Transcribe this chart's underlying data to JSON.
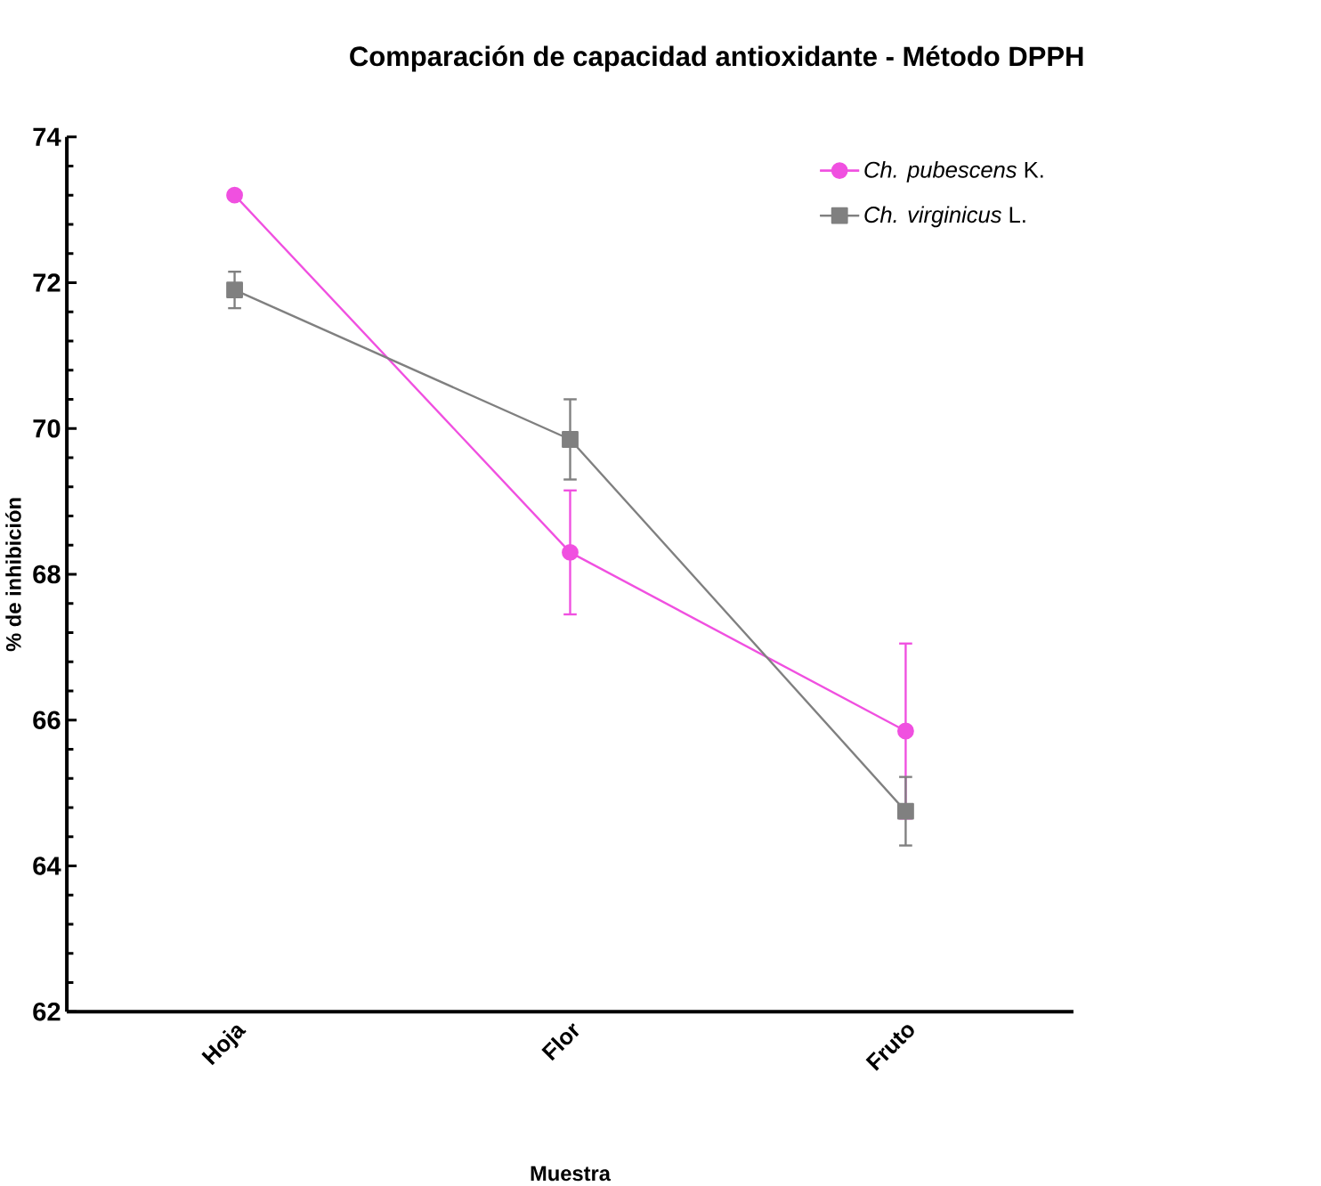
{
  "chart_data": {
    "type": "line",
    "title": "Comparación de capacidad antioxidante - Método DPPH",
    "xlabel": "Muestra",
    "ylabel": "% de inhibición",
    "categories": [
      "Hoja",
      "Flor",
      "Fruto"
    ],
    "series": [
      {
        "name": "*Ch. pubescens* K.",
        "color": "#f050e0",
        "values": [
          73.2,
          68.3,
          65.85
        ],
        "errors": [
          null,
          0.85,
          1.2
        ],
        "marker": "circle"
      },
      {
        "name": "*Ch. virginicus* L.",
        "color": "#808080",
        "values": [
          71.9,
          69.85,
          64.75
        ],
        "errors": [
          0.25,
          0.55,
          0.47
        ],
        "marker": "square"
      }
    ],
    "ylim": [
      62,
      74
    ],
    "yticks": [
      62,
      64,
      66,
      68,
      70,
      72,
      74
    ],
    "legend": "top right",
    "grid": false,
    "line_style": "solid"
  }
}
